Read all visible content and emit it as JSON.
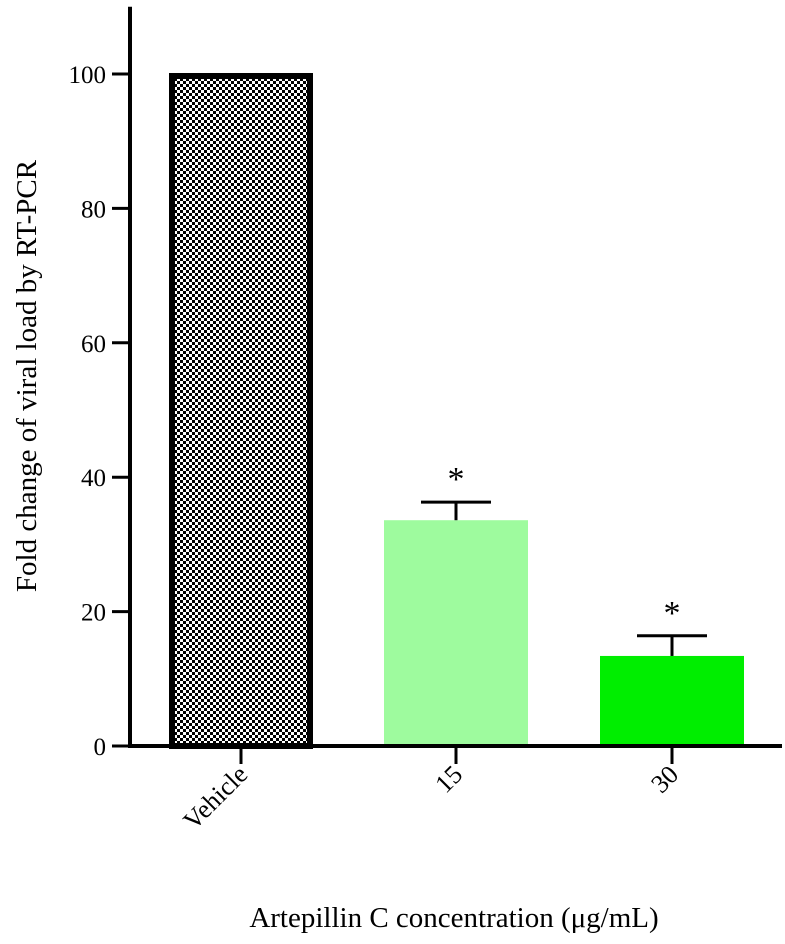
{
  "chart_data": {
    "type": "bar",
    "title": "",
    "xlabel": "Artepillin C concentration (μg/mL)",
    "ylabel": "Fold change of viral load by RT-PCR",
    "categories": [
      "Vehicle",
      "15",
      "30"
    ],
    "values": [
      100,
      33.6,
      13.4
    ],
    "errors": [
      0,
      2.7,
      3.0
    ],
    "significance": [
      "",
      "*",
      "*"
    ],
    "bar_colors": [
      "checkered",
      "#9efb9e",
      "#00ee00"
    ],
    "ylim": [
      0,
      110
    ],
    "yticks": [
      0,
      20,
      40,
      60,
      80,
      100
    ],
    "ytick_labels": [
      "0",
      "20",
      "40",
      "60",
      "80",
      "100"
    ],
    "grid": false,
    "legend": "none"
  }
}
